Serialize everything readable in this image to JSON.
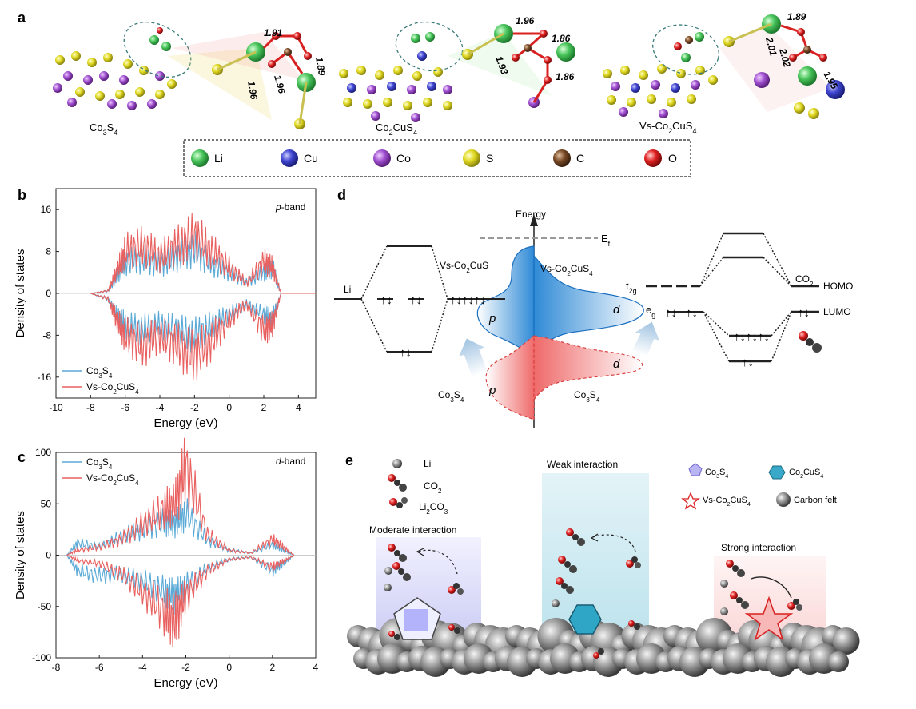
{
  "panels": {
    "a": {
      "label": "a",
      "structures": [
        {
          "name": "Co3S4",
          "bonds": [
            "1.91",
            "1.96",
            "1.96",
            "1.89"
          ]
        },
        {
          "name": "Co2CuS4",
          "bonds": [
            "1.96",
            "1.86",
            "1.93",
            "1.86"
          ]
        },
        {
          "name": "Vs-Co2CuS4",
          "bonds": [
            "1.89",
            "2.01",
            "2.02",
            "1.95"
          ]
        }
      ],
      "legend": [
        {
          "name": "Li",
          "color": "#35b84a"
        },
        {
          "name": "Cu",
          "color": "#3b3fc8"
        },
        {
          "name": "Co",
          "color": "#9b45c7"
        },
        {
          "name": "S",
          "color": "#d8d21a"
        },
        {
          "name": "C",
          "color": "#7a4a26"
        },
        {
          "name": "O",
          "color": "#d81e1e"
        }
      ]
    },
    "b": {
      "label": "b",
      "band": "p-band"
    },
    "c": {
      "label": "c",
      "band": "d-band"
    },
    "d": {
      "label": "d",
      "energy_label": "Energy",
      "ef_label": "Ef",
      "li_label": "Li",
      "vs_left": "Vs-Co2CuS",
      "vs_right": "Vs-Co2CuS4",
      "p_label": "p",
      "d_label": "d",
      "co3s4": "Co3S4",
      "t2g": "t2g",
      "eg": "eg",
      "co2_label": "CO2",
      "homo": "HOMO",
      "lumo": "LUMO"
    },
    "e": {
      "label": "e",
      "legend": [
        "Li",
        "CO2",
        "Li2CO3"
      ],
      "catalysts": [
        "Co3S4",
        "Co2CuS4",
        "Vs-Co2CuS4",
        "Carbon felt"
      ],
      "interactions": [
        "Moderate interaction",
        "Weak interaction",
        "Strong interaction"
      ]
    }
  },
  "chart_data": [
    {
      "type": "line",
      "title": "p-band",
      "xlabel": "Energy (eV)",
      "ylabel": "Density of states",
      "xlim": [
        -10,
        5
      ],
      "ylim": [
        -20,
        20
      ],
      "xticks": [
        -10,
        -8,
        -6,
        -4,
        -2,
        0,
        2,
        4
      ],
      "yticks": [
        -16,
        -8,
        0,
        8,
        16
      ],
      "grid": false,
      "legend_position": "bottom-left",
      "series": [
        {
          "name": "Co3S4",
          "color": "#5aa9d6",
          "up_x": [
            -8,
            -7,
            -6.5,
            -6,
            -5,
            -4,
            -3,
            -2,
            -1,
            0,
            1,
            2,
            2.5,
            3,
            5
          ],
          "up_y": [
            0,
            0.5,
            3,
            6,
            6.5,
            5.5,
            7,
            8.5,
            5.5,
            4,
            2,
            4,
            5,
            0,
            0
          ],
          "down_y": [
            0,
            -1,
            -4,
            -6,
            -7,
            -6,
            -7,
            -8,
            -6,
            -4,
            -2,
            -4,
            -5,
            0,
            0
          ]
        },
        {
          "name": "Vs-Co2CuS4",
          "color": "#e8605f",
          "up_x": [
            -8,
            -7,
            -6.5,
            -6,
            -5,
            -4,
            -3,
            -2,
            -1,
            0,
            1,
            2,
            2.5,
            3,
            5
          ],
          "up_y": [
            0,
            0.5,
            4,
            8,
            9,
            7,
            9,
            11,
            8,
            5,
            2,
            6,
            5,
            0,
            0
          ],
          "down_y": [
            0,
            -1,
            -5,
            -8,
            -10,
            -8,
            -10,
            -12,
            -9,
            -5,
            -2,
            -7,
            -6,
            0,
            0
          ]
        }
      ]
    },
    {
      "type": "line",
      "title": "d-band",
      "xlabel": "Energy (eV)",
      "ylabel": "Density of states",
      "xlim": [
        -8,
        4
      ],
      "ylim": [
        -100,
        100
      ],
      "xticks": [
        -8,
        -6,
        -4,
        -2,
        0,
        2,
        4
      ],
      "yticks": [
        -100,
        -50,
        0,
        50,
        100
      ],
      "grid": false,
      "legend_position": "top-left",
      "series": [
        {
          "name": "Co3S4",
          "color": "#5aa9d6",
          "up_x": [
            -7.5,
            -7,
            -6,
            -5,
            -4,
            -3,
            -2.5,
            -2,
            -1,
            0,
            1,
            2,
            2.5,
            3
          ],
          "up_y": [
            0,
            12,
            8,
            18,
            25,
            32,
            30,
            40,
            15,
            5,
            2,
            10,
            5,
            0
          ],
          "down_y": [
            0,
            -15,
            -20,
            -18,
            -25,
            -35,
            -40,
            -30,
            -12,
            -4,
            -2,
            -15,
            -8,
            0
          ]
        },
        {
          "name": "Vs-Co2CuS4",
          "color": "#e8605f",
          "up_x": [
            -7.5,
            -7,
            -6,
            -5,
            -4,
            -3,
            -2.5,
            -2,
            -1,
            0,
            1,
            2,
            2.5,
            3
          ],
          "up_y": [
            0,
            5,
            8,
            15,
            30,
            45,
            50,
            85,
            20,
            5,
            2,
            15,
            8,
            0
          ],
          "down_y": [
            0,
            -5,
            -8,
            -18,
            -35,
            -55,
            -65,
            -40,
            -15,
            -4,
            -2,
            -12,
            -6,
            0
          ]
        }
      ]
    }
  ]
}
